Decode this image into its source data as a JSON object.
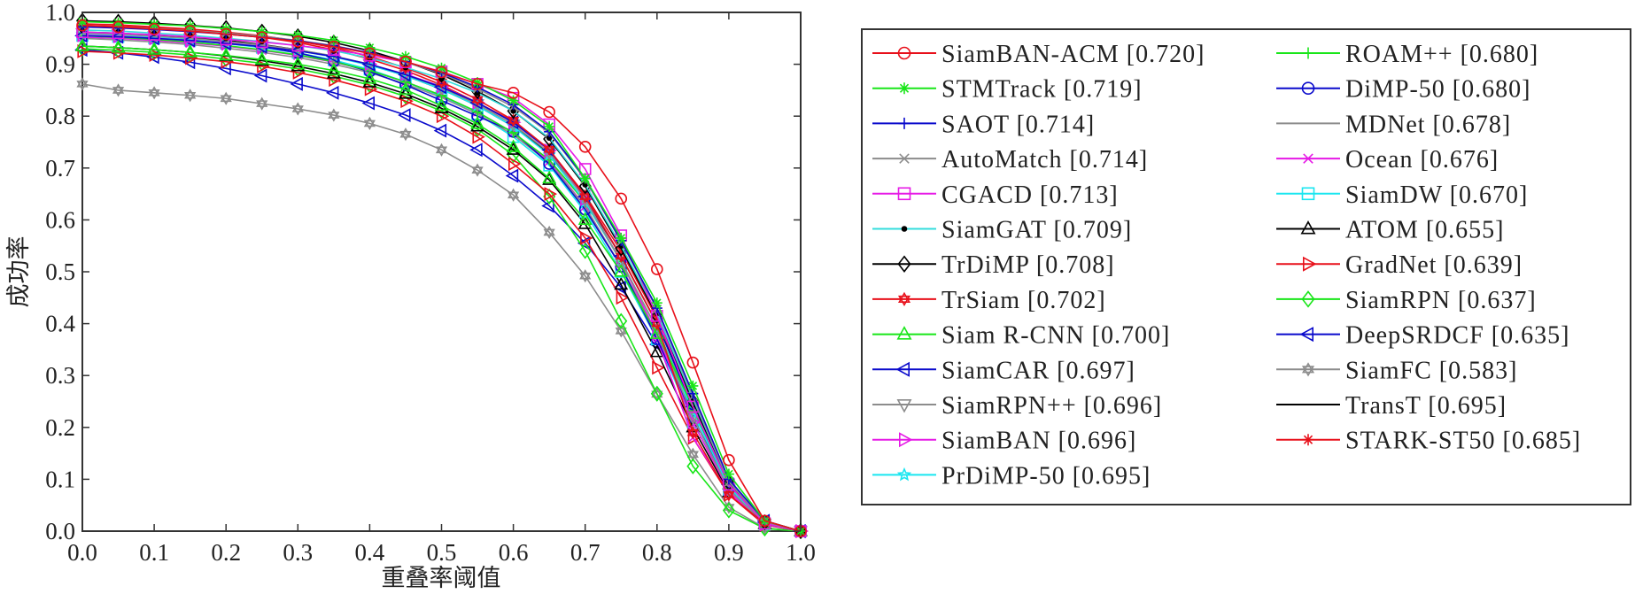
{
  "chart_data": {
    "type": "line",
    "title": "",
    "xlabel": "重叠率阈值",
    "ylabel": "成功率",
    "xlim": [
      0.0,
      1.0
    ],
    "ylim": [
      0.0,
      1.0
    ],
    "grid": false,
    "legend_position": "right",
    "x_ticks": [
      "0.0",
      "0.1",
      "0.2",
      "0.3",
      "0.4",
      "0.5",
      "0.6",
      "0.7",
      "0.8",
      "0.9",
      "1.0"
    ],
    "y_ticks": [
      "0.0",
      "0.1",
      "0.2",
      "0.3",
      "0.4",
      "0.5",
      "0.6",
      "0.7",
      "0.8",
      "0.9",
      "1.0"
    ],
    "x": [
      0.0,
      0.05,
      0.1,
      0.15,
      0.2,
      0.25,
      0.3,
      0.35,
      0.4,
      0.45,
      0.5,
      0.55,
      0.6,
      0.65,
      0.7,
      0.75,
      0.8,
      0.85,
      0.9,
      0.95,
      1.0
    ],
    "series": [
      {
        "name": "SiamBAN-ACM [0.720]",
        "color": "#e8101a",
        "marker": "circle",
        "values": [
          0.975,
          0.972,
          0.968,
          0.964,
          0.958,
          0.952,
          0.944,
          0.934,
          0.921,
          0.905,
          0.885,
          0.862,
          0.845,
          0.808,
          0.741,
          0.641,
          0.505,
          0.325,
          0.137,
          0.02,
          0.0
        ]
      },
      {
        "name": "STMTrack [0.719]",
        "color": "#19e619",
        "marker": "asterisk",
        "values": [
          0.982,
          0.98,
          0.977,
          0.974,
          0.969,
          0.963,
          0.956,
          0.946,
          0.932,
          0.915,
          0.893,
          0.865,
          0.83,
          0.78,
          0.68,
          0.565,
          0.44,
          0.28,
          0.11,
          0.02,
          0.0
        ]
      },
      {
        "name": "SAOT [0.714]",
        "color": "#0a0acc",
        "marker": "plus",
        "values": [
          0.972,
          0.97,
          0.967,
          0.963,
          0.958,
          0.952,
          0.945,
          0.935,
          0.922,
          0.905,
          0.884,
          0.856,
          0.822,
          0.77,
          0.68,
          0.56,
          0.43,
          0.265,
          0.1,
          0.02,
          0.0
        ]
      },
      {
        "name": "AutoMatch [0.714]",
        "color": "#8c8c8c",
        "marker": "x",
        "values": [
          0.974,
          0.972,
          0.969,
          0.965,
          0.96,
          0.954,
          0.946,
          0.936,
          0.922,
          0.904,
          0.882,
          0.853,
          0.818,
          0.768,
          0.678,
          0.558,
          0.428,
          0.26,
          0.095,
          0.018,
          0.0
        ]
      },
      {
        "name": "CGACD [0.713]",
        "color": "#e619e6",
        "marker": "square",
        "values": [
          0.962,
          0.96,
          0.957,
          0.953,
          0.948,
          0.943,
          0.936,
          0.928,
          0.917,
          0.904,
          0.886,
          0.862,
          0.835,
          0.784,
          0.698,
          0.57,
          0.415,
          0.24,
          0.09,
          0.015,
          0.0
        ]
      },
      {
        "name": "SiamGAT [0.709]",
        "color": "#33dddd",
        "marker": "dot",
        "values": [
          0.966,
          0.964,
          0.96,
          0.956,
          0.95,
          0.944,
          0.936,
          0.926,
          0.912,
          0.894,
          0.872,
          0.845,
          0.81,
          0.758,
          0.668,
          0.55,
          0.42,
          0.255,
          0.095,
          0.018,
          0.0
        ]
      },
      {
        "name": "TrDiMP [0.708]",
        "color": "#000000",
        "marker": "diamond",
        "values": [
          0.984,
          0.982,
          0.979,
          0.975,
          0.97,
          0.963,
          0.954,
          0.942,
          0.926,
          0.905,
          0.88,
          0.848,
          0.81,
          0.756,
          0.665,
          0.545,
          0.415,
          0.25,
          0.093,
          0.017,
          0.0
        ]
      },
      {
        "name": "TrSiam [0.702]",
        "color": "#e8101a",
        "marker": "hexagram",
        "values": [
          0.978,
          0.976,
          0.972,
          0.968,
          0.962,
          0.955,
          0.945,
          0.932,
          0.915,
          0.893,
          0.866,
          0.832,
          0.792,
          0.736,
          0.645,
          0.53,
          0.4,
          0.19,
          0.07,
          0.015,
          0.0
        ]
      },
      {
        "name": "Siam R-CNN [0.700]",
        "color": "#19e619",
        "marker": "triangle-up",
        "values": [
          0.935,
          0.932,
          0.928,
          0.923,
          0.917,
          0.909,
          0.9,
          0.888,
          0.872,
          0.851,
          0.82,
          0.785,
          0.74,
          0.68,
          0.6,
          0.5,
          0.38,
          0.24,
          0.09,
          0.015,
          0.0
        ]
      },
      {
        "name": "SiamCAR [0.697]",
        "color": "#0a0acc",
        "marker": "triangle-left",
        "values": [
          0.955,
          0.953,
          0.95,
          0.946,
          0.94,
          0.934,
          0.926,
          0.915,
          0.9,
          0.88,
          0.856,
          0.826,
          0.788,
          0.735,
          0.645,
          0.53,
          0.4,
          0.24,
          0.09,
          0.017,
          0.0
        ]
      },
      {
        "name": "SiamRPN++ [0.696]",
        "color": "#8c8c8c",
        "marker": "triangle-down",
        "values": [
          0.96,
          0.958,
          0.954,
          0.95,
          0.944,
          0.937,
          0.928,
          0.916,
          0.9,
          0.88,
          0.855,
          0.823,
          0.784,
          0.73,
          0.64,
          0.52,
          0.39,
          0.22,
          0.08,
          0.014,
          0.0
        ]
      },
      {
        "name": "SiamBAN [0.696]",
        "color": "#e619e6",
        "marker": "triangle-right",
        "values": [
          0.956,
          0.954,
          0.95,
          0.946,
          0.941,
          0.934,
          0.926,
          0.915,
          0.9,
          0.881,
          0.857,
          0.826,
          0.788,
          0.734,
          0.64,
          0.52,
          0.38,
          0.21,
          0.078,
          0.013,
          0.0
        ]
      },
      {
        "name": "PrDiMP-50 [0.695]",
        "color": "#19e6f0",
        "marker": "pentagram",
        "values": [
          0.958,
          0.956,
          0.952,
          0.948,
          0.942,
          0.935,
          0.926,
          0.914,
          0.898,
          0.878,
          0.852,
          0.82,
          0.78,
          0.725,
          0.635,
          0.52,
          0.39,
          0.23,
          0.085,
          0.015,
          0.0
        ]
      },
      {
        "name": "ROAM++ [0.680]",
        "color": "#19e619",
        "marker": "plus",
        "values": [
          0.955,
          0.952,
          0.948,
          0.943,
          0.936,
          0.928,
          0.918,
          0.905,
          0.888,
          0.866,
          0.84,
          0.808,
          0.768,
          0.716,
          0.634,
          0.52,
          0.39,
          0.235,
          0.09,
          0.016,
          0.0
        ]
      },
      {
        "name": "DiMP-50 [0.680]",
        "color": "#0a0acc",
        "marker": "circle",
        "values": [
          0.96,
          0.958,
          0.954,
          0.949,
          0.942,
          0.934,
          0.922,
          0.906,
          0.886,
          0.86,
          0.83,
          0.8,
          0.77,
          0.708,
          0.62,
          0.51,
          0.37,
          0.22,
          0.085,
          0.015,
          0.0
        ]
      },
      {
        "name": "MDNet [0.678]",
        "color": "#8c8c8c",
        "marker": "none",
        "values": [
          0.95,
          0.947,
          0.943,
          0.938,
          0.931,
          0.923,
          0.913,
          0.9,
          0.884,
          0.862,
          0.836,
          0.804,
          0.764,
          0.71,
          0.625,
          0.51,
          0.38,
          0.22,
          0.08,
          0.015,
          0.0
        ]
      },
      {
        "name": "Ocean [0.676]",
        "color": "#e619e6",
        "marker": "x",
        "values": [
          0.952,
          0.95,
          0.946,
          0.941,
          0.935,
          0.927,
          0.917,
          0.904,
          0.888,
          0.866,
          0.84,
          0.808,
          0.768,
          0.713,
          0.626,
          0.51,
          0.37,
          0.18,
          0.075,
          0.013,
          0.0
        ]
      },
      {
        "name": "SiamDW [0.670]",
        "color": "#19e6f0",
        "marker": "square",
        "values": [
          0.955,
          0.953,
          0.95,
          0.946,
          0.94,
          0.932,
          0.922,
          0.908,
          0.89,
          0.866,
          0.838,
          0.804,
          0.76,
          0.705,
          0.615,
          0.5,
          0.37,
          0.21,
          0.08,
          0.014,
          0.0
        ]
      },
      {
        "name": "ATOM [0.655]",
        "color": "#000000",
        "marker": "triangle-up",
        "values": [
          0.935,
          0.932,
          0.928,
          0.923,
          0.916,
          0.907,
          0.896,
          0.882,
          0.865,
          0.843,
          0.815,
          0.78,
          0.735,
          0.677,
          0.592,
          0.475,
          0.345,
          0.2,
          0.075,
          0.013,
          0.0
        ]
      },
      {
        "name": "GradNet [0.639]",
        "color": "#e8101a",
        "marker": "triangle-right",
        "values": [
          0.925,
          0.922,
          0.918,
          0.912,
          0.905,
          0.896,
          0.884,
          0.87,
          0.852,
          0.829,
          0.8,
          0.76,
          0.708,
          0.65,
          0.565,
          0.45,
          0.315,
          0.18,
          0.07,
          0.012,
          0.0
        ]
      },
      {
        "name": "SiamRPN [0.637]",
        "color": "#19e619",
        "marker": "diamond",
        "values": [
          0.93,
          0.927,
          0.923,
          0.918,
          0.91,
          0.902,
          0.891,
          0.877,
          0.86,
          0.838,
          0.81,
          0.775,
          0.725,
          0.645,
          0.54,
          0.405,
          0.265,
          0.125,
          0.04,
          0.005,
          0.0
        ]
      },
      {
        "name": "DeepSRDCF [0.635]",
        "color": "#0a0acc",
        "marker": "triangle-left",
        "values": [
          0.928,
          0.922,
          0.914,
          0.904,
          0.892,
          0.878,
          0.862,
          0.845,
          0.825,
          0.802,
          0.772,
          0.735,
          0.685,
          0.627,
          0.555,
          0.47,
          0.36,
          0.23,
          0.09,
          0.02,
          0.0
        ]
      },
      {
        "name": "SiamFC [0.583]",
        "color": "#8c8c8c",
        "marker": "hexagram",
        "values": [
          0.862,
          0.85,
          0.845,
          0.84,
          0.834,
          0.824,
          0.814,
          0.802,
          0.786,
          0.765,
          0.735,
          0.696,
          0.648,
          0.576,
          0.492,
          0.386,
          0.264,
          0.148,
          0.046,
          0.006,
          0.0
        ]
      },
      {
        "name": "TransT [0.695]",
        "color": "#000000",
        "marker": "none",
        "values": [
          0.962,
          0.96,
          0.956,
          0.952,
          0.946,
          0.938,
          0.928,
          0.915,
          0.899,
          0.878,
          0.852,
          0.82,
          0.78,
          0.728,
          0.642,
          0.53,
          0.4,
          0.245,
          0.092,
          0.017,
          0.0
        ]
      },
      {
        "name": "STARK-ST50 [0.685]",
        "color": "#e8101a",
        "marker": "asterisk",
        "values": [
          0.975,
          0.973,
          0.97,
          0.966,
          0.96,
          0.952,
          0.942,
          0.928,
          0.91,
          0.888,
          0.86,
          0.826,
          0.79,
          0.735,
          0.648,
          0.54,
          0.41,
          0.245,
          0.075,
          0.015,
          0.0
        ]
      }
    ],
    "legend_columns": [
      [
        "SiamBAN-ACM [0.720]",
        "STMTrack [0.719]",
        "SAOT [0.714]",
        "AutoMatch [0.714]",
        "CGACD [0.713]",
        "SiamGAT [0.709]",
        "TrDiMP [0.708]",
        "TrSiam [0.702]",
        "Siam R-CNN [0.700]",
        "SiamCAR [0.697]",
        "SiamRPN++ [0.696]",
        "SiamBAN [0.696]",
        "PrDiMP-50 [0.695]"
      ],
      [
        "ROAM++ [0.680]",
        "DiMP-50 [0.680]",
        "MDNet [0.678]",
        "Ocean [0.676]",
        "SiamDW [0.670]",
        "ATOM [0.655]",
        "GradNet [0.639]",
        "SiamRPN [0.637]",
        "DeepSRDCF [0.635]",
        "SiamFC [0.583]",
        "TransT [0.695]",
        "STARK-ST50 [0.685]"
      ]
    ]
  }
}
